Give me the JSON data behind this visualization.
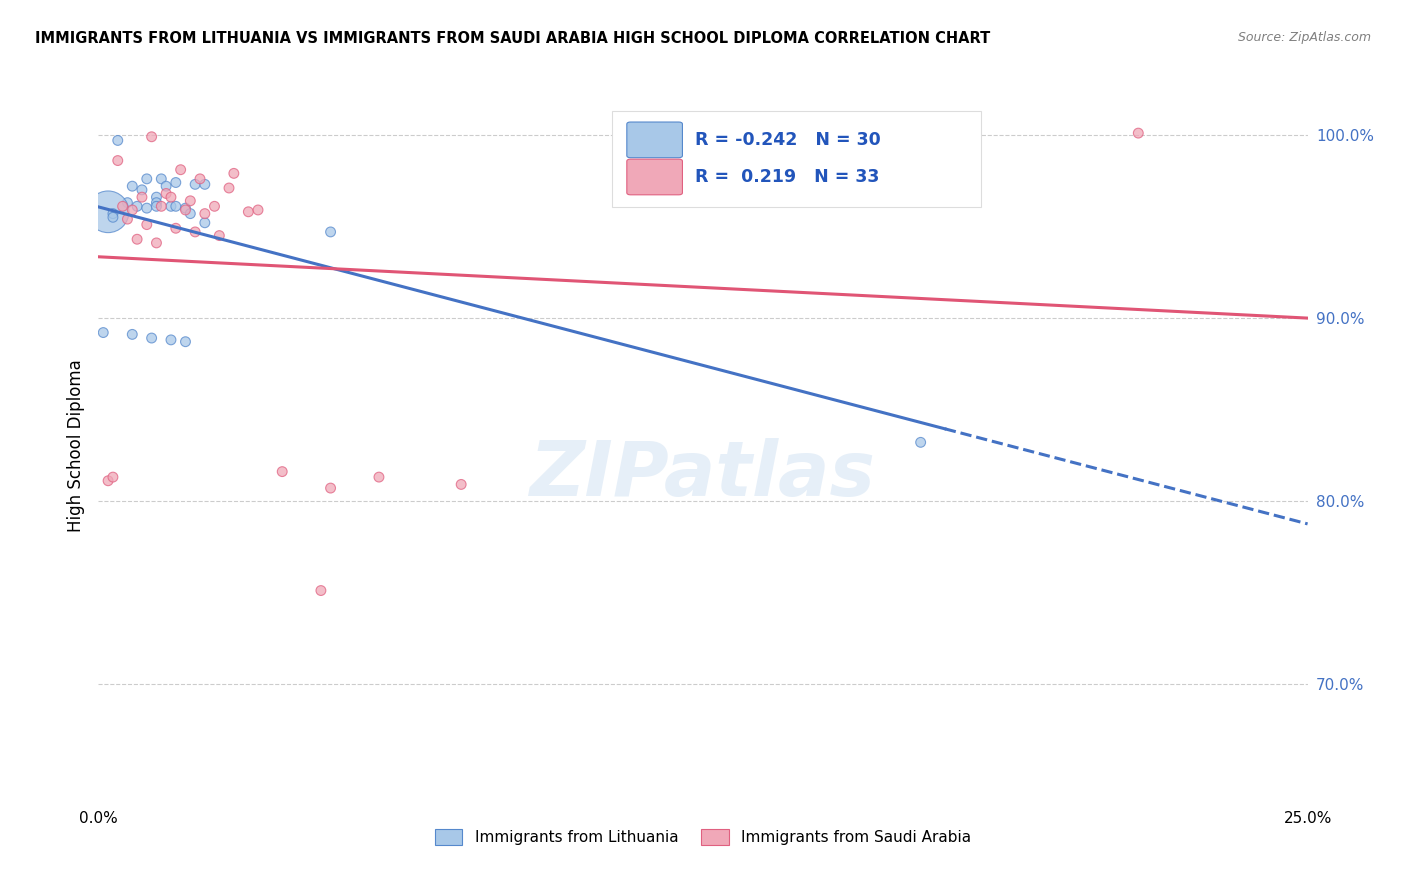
{
  "title": "IMMIGRANTS FROM LITHUANIA VS IMMIGRANTS FROM SAUDI ARABIA HIGH SCHOOL DIPLOMA CORRELATION CHART",
  "source": "Source: ZipAtlas.com",
  "ylabel": "High School Diploma",
  "xmin": 0.0,
  "xmax": 0.25,
  "ymin": 0.635,
  "ymax": 1.025,
  "ytick_vals": [
    0.7,
    0.8,
    0.9,
    1.0
  ],
  "ytick_labels": [
    "70.0%",
    "80.0%",
    "90.0%",
    "100.0%"
  ],
  "xtick_vals": [
    0.0,
    0.25
  ],
  "xtick_labels": [
    "0.0%",
    "25.0%"
  ],
  "legend_r_blue": "-0.242",
  "legend_n_blue": "30",
  "legend_r_pink": " 0.219",
  "legend_n_pink": "33",
  "blue_color": "#a8c8e8",
  "pink_color": "#f0a8b8",
  "blue_edge": "#5588cc",
  "pink_edge": "#e06080",
  "blue_line": "#4472c4",
  "pink_line": "#e05575",
  "watermark_text": "ZIPatlas",
  "blue_x": [
    0.004,
    0.01,
    0.007,
    0.013,
    0.016,
    0.02,
    0.009,
    0.012,
    0.014,
    0.006,
    0.008,
    0.01,
    0.012,
    0.015,
    0.018,
    0.002,
    0.016,
    0.019,
    0.022,
    0.003,
    0.003,
    0.007,
    0.011,
    0.015,
    0.018,
    0.001,
    0.022,
    0.17,
    0.048,
    0.012
  ],
  "blue_y": [
    0.997,
    0.976,
    0.972,
    0.976,
    0.974,
    0.973,
    0.97,
    0.966,
    0.972,
    0.963,
    0.961,
    0.96,
    0.963,
    0.961,
    0.96,
    0.958,
    0.961,
    0.957,
    0.952,
    0.957,
    0.955,
    0.891,
    0.889,
    0.888,
    0.887,
    0.892,
    0.973,
    0.832,
    0.947,
    0.961
  ],
  "blue_sizes": [
    50,
    50,
    50,
    50,
    50,
    50,
    50,
    50,
    50,
    50,
    50,
    50,
    50,
    50,
    50,
    900,
    50,
    50,
    50,
    50,
    50,
    50,
    50,
    50,
    50,
    50,
    50,
    50,
    50,
    50
  ],
  "pink_x": [
    0.011,
    0.004,
    0.017,
    0.021,
    0.027,
    0.014,
    0.009,
    0.019,
    0.024,
    0.007,
    0.028,
    0.015,
    0.013,
    0.018,
    0.022,
    0.006,
    0.01,
    0.016,
    0.02,
    0.025,
    0.008,
    0.012,
    0.002,
    0.003,
    0.031,
    0.005,
    0.033,
    0.038,
    0.046,
    0.215,
    0.058,
    0.075,
    0.048
  ],
  "pink_y": [
    0.999,
    0.986,
    0.981,
    0.976,
    0.971,
    0.968,
    0.966,
    0.964,
    0.961,
    0.959,
    0.979,
    0.966,
    0.961,
    0.959,
    0.957,
    0.954,
    0.951,
    0.949,
    0.947,
    0.945,
    0.943,
    0.941,
    0.811,
    0.813,
    0.958,
    0.961,
    0.959,
    0.816,
    0.751,
    1.001,
    0.813,
    0.809,
    0.807
  ],
  "pink_sizes": [
    50,
    50,
    50,
    50,
    50,
    50,
    50,
    50,
    50,
    50,
    50,
    50,
    50,
    50,
    50,
    50,
    50,
    50,
    50,
    50,
    50,
    50,
    50,
    50,
    50,
    50,
    50,
    50,
    50,
    50,
    50,
    50,
    50
  ]
}
